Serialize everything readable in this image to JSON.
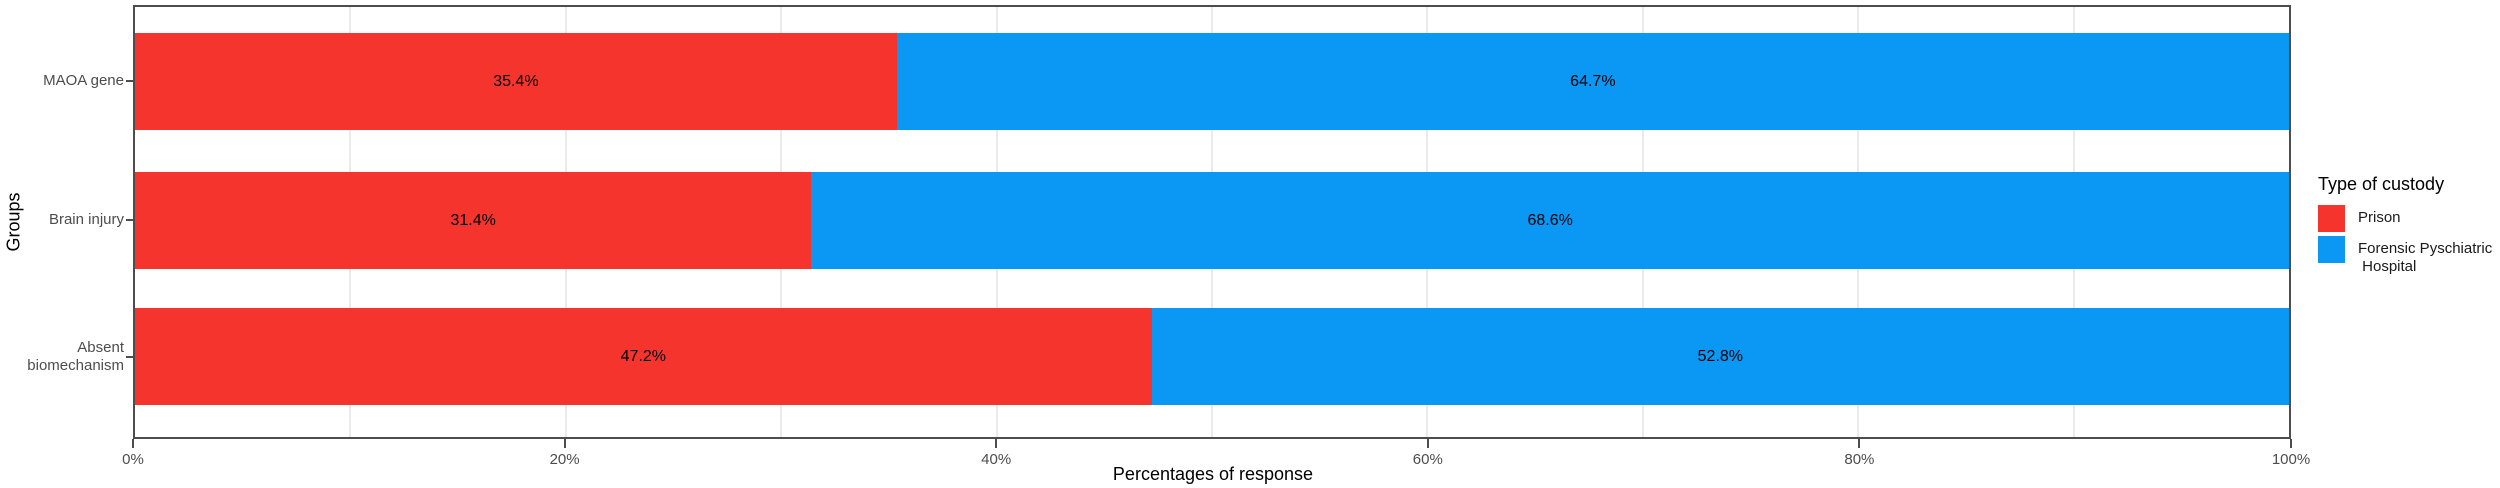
{
  "chart_data": {
    "type": "bar",
    "orientation": "horizontal",
    "stacked": true,
    "title": "",
    "xlabel": "Percentages of response",
    "ylabel": "Groups",
    "categories": [
      "MAOA gene",
      "Brain injury",
      "Absent biomechanism"
    ],
    "category_label_lines": [
      [
        "MAOA gene"
      ],
      [
        "Brain injury"
      ],
      [
        "Absent",
        "biomechanism"
      ]
    ],
    "series": [
      {
        "name": "Prison",
        "color": "#f5352d",
        "values": [
          35.4,
          31.4,
          47.2
        ]
      },
      {
        "name": "Forensic Pyschiatric Hospital",
        "color": "#0b97f4",
        "values": [
          64.7,
          68.6,
          52.8
        ]
      }
    ],
    "bar_labels": [
      [
        "35.4%",
        "64.7%"
      ],
      [
        "31.4%",
        "68.6%"
      ],
      [
        "47.2%",
        "52.8%"
      ]
    ],
    "x_ticks": [
      "0%",
      "20%",
      "40%",
      "60%",
      "80%",
      "100%"
    ],
    "x_tick_values": [
      0,
      20,
      40,
      60,
      80,
      100
    ],
    "xlim": [
      0,
      100
    ],
    "grid": {
      "show": true,
      "interval_percent": 10,
      "color": "#ebebeb"
    },
    "legend_position": "right"
  },
  "axes": {
    "x_title": "Percentages of response",
    "y_title": "Groups"
  },
  "legend": {
    "title": "Type of custody",
    "items": [
      {
        "label_lines": [
          "Prison"
        ],
        "color": "#f5352d"
      },
      {
        "label_lines": [
          "Forensic Pyschiatric",
          " Hospital"
        ],
        "color": "#0b97f4"
      }
    ]
  },
  "style_colors": {
    "prison_red": "#f5352d",
    "hospital_blue": "#0b97f4",
    "panel_border": "#4d4d4d",
    "gridline": "#ebebeb",
    "axis_text": "#4d4d4d"
  }
}
